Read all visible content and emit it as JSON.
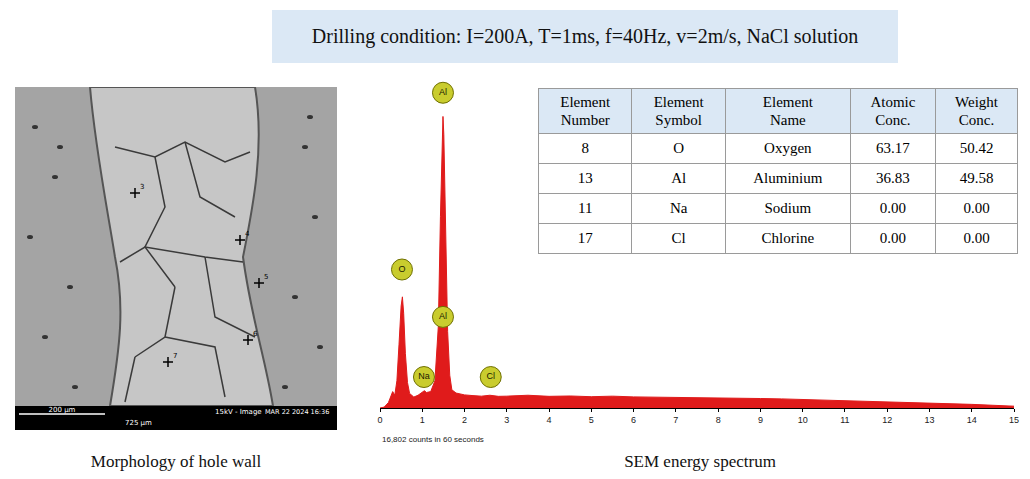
{
  "header": {
    "title": "Drilling condition: I=200A, T=1ms, f=40Hz, v=2m/s, NaCl solution"
  },
  "panels": [
    {
      "caption": "Morphology of hole wall",
      "image": {
        "scale_bar": "200 μm",
        "info": "15kV - Image",
        "date": "MAR 22 2024 16:36",
        "field_width": "725 μm",
        "points": [
          "3",
          "4",
          "5",
          "6",
          "7"
        ]
      }
    },
    {
      "caption": "SEM energy spectrum"
    }
  ],
  "chart_data": {
    "type": "line",
    "color": "#e01b1b",
    "tick_labels": "x",
    "grid": false,
    "x": [
      0,
      0.1,
      0.2,
      0.3,
      0.35,
      0.4,
      0.45,
      0.5,
      0.53,
      0.56,
      0.6,
      0.65,
      0.7,
      0.8,
      0.9,
      1.0,
      1.05,
      1.1,
      1.2,
      1.3,
      1.38,
      1.43,
      1.47,
      1.49,
      1.51,
      1.55,
      1.6,
      1.65,
      1.7,
      1.8,
      1.9,
      2.0,
      2.2,
      2.4,
      2.6,
      2.7,
      2.8,
      3.0,
      3.5,
      4.0,
      4.5,
      5.0,
      5.5,
      6.0,
      6.5,
      7.0,
      7.5,
      8.0,
      8.5,
      9.0,
      9.5,
      10.0,
      10.5,
      11.0,
      11.5,
      12.0,
      12.5,
      13.0,
      13.5,
      14.0,
      14.5,
      15.0
    ],
    "values": [
      0,
      50,
      300,
      900,
      700,
      1500,
      3500,
      5600,
      6100,
      5200,
      3000,
      1400,
      800,
      600,
      700,
      850,
      950,
      850,
      900,
      1500,
      4500,
      10500,
      15200,
      16000,
      15000,
      10000,
      4200,
      1800,
      1000,
      820,
      760,
      720,
      680,
      650,
      700,
      660,
      640,
      650,
      700,
      640,
      660,
      620,
      650,
      610,
      600,
      600,
      580,
      560,
      550,
      520,
      500,
      470,
      450,
      420,
      390,
      350,
      320,
      280,
      240,
      200,
      150,
      100
    ],
    "xlim": [
      0,
      15
    ],
    "xticks": [
      0,
      1,
      2,
      3,
      4,
      5,
      6,
      7,
      8,
      9,
      10,
      11,
      12,
      13,
      14,
      15
    ],
    "ylim": [
      0,
      18000
    ],
    "peak_labels": [
      {
        "label": "O",
        "x": 0.52,
        "y": 7600
      },
      {
        "label": "Al",
        "x": 1.49,
        "y": 17300
      },
      {
        "label": "Al",
        "x": 1.49,
        "y": 5000
      },
      {
        "label": "Na",
        "x": 1.04,
        "y": 1700
      },
      {
        "label": "Cl",
        "x": 2.62,
        "y": 1700
      }
    ],
    "footnote": "16,802 counts in 60 seconds"
  },
  "table": {
    "columns": [
      "Element Number",
      "Element Symbol",
      "Element Name",
      "Atomic Conc.",
      "Weight Conc."
    ],
    "rows": [
      [
        "8",
        "O",
        "Oxygen",
        "63.17",
        "50.42"
      ],
      [
        "13",
        "Al",
        "Aluminium",
        "36.83",
        "49.58"
      ],
      [
        "11",
        "Na",
        "Sodium",
        "0.00",
        "0.00"
      ],
      [
        "17",
        "Cl",
        "Chlorine",
        "0.00",
        "0.00"
      ]
    ]
  }
}
